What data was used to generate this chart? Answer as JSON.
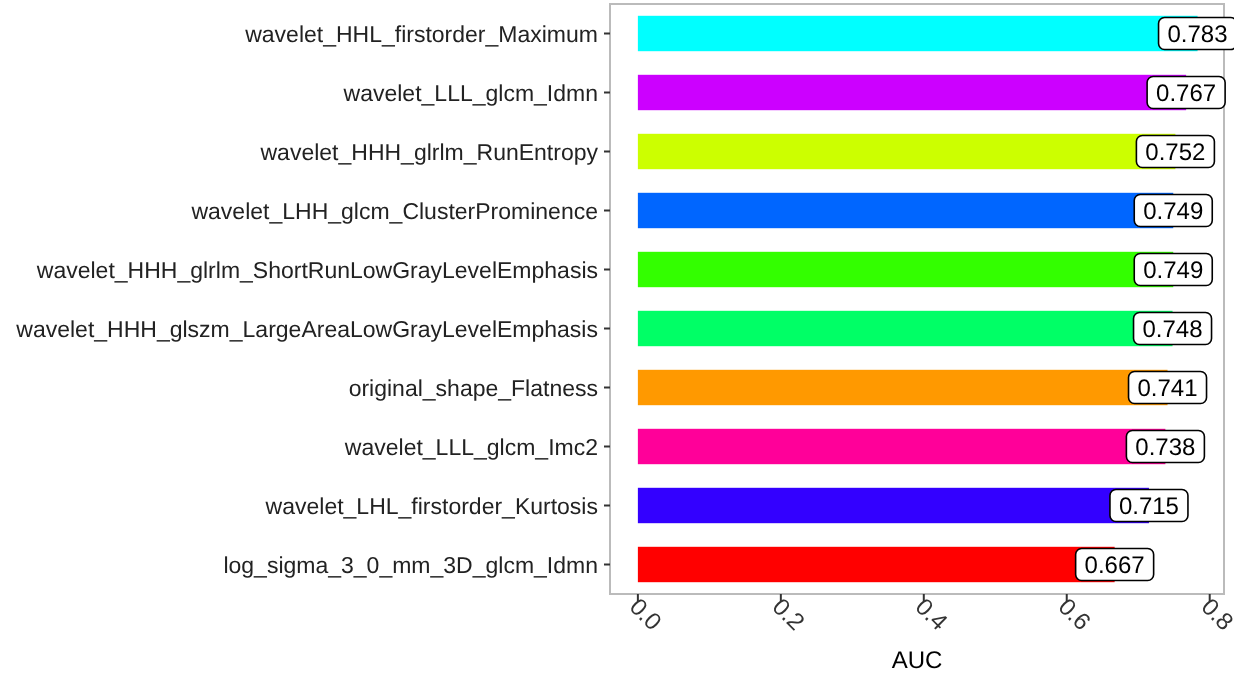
{
  "chart_data": {
    "type": "bar",
    "orientation": "horizontal",
    "xlabel": "AUC",
    "categories": [
      "wavelet_HHL_firstorder_Maximum",
      "wavelet_LLL_glcm_Idmn",
      "wavelet_HHH_glrlm_RunEntropy",
      "wavelet_LHH_glcm_ClusterProminence",
      "wavelet_HHH_glrlm_ShortRunLowGrayLevelEmphasis",
      "wavelet_HHH_glszm_LargeAreaLowGrayLevelEmphasis",
      "original_shape_Flatness",
      "wavelet_LLL_glcm_Imc2",
      "wavelet_LHL_firstorder_Kurtosis",
      "log_sigma_3_0_mm_3D_glcm_Idmn"
    ],
    "values": [
      0.783,
      0.767,
      0.752,
      0.749,
      0.749,
      0.748,
      0.741,
      0.738,
      0.715,
      0.667
    ],
    "colors": [
      "#00ffff",
      "#cc00ff",
      "#ccff00",
      "#0066ff",
      "#33ff00",
      "#00ff66",
      "#ff9900",
      "#ff0099",
      "#3300ff",
      "#ff0000"
    ],
    "xlim": [
      -0.039,
      0.82
    ],
    "xticks": [
      {
        "value": 0,
        "label": "0.0"
      },
      {
        "value": 0.2,
        "label": "0.2"
      },
      {
        "value": 0.4,
        "label": "0.4"
      },
      {
        "value": 0.6,
        "label": "0.6"
      },
      {
        "value": 0.8,
        "label": "0.8"
      }
    ],
    "data_labels": true,
    "grid": false
  }
}
